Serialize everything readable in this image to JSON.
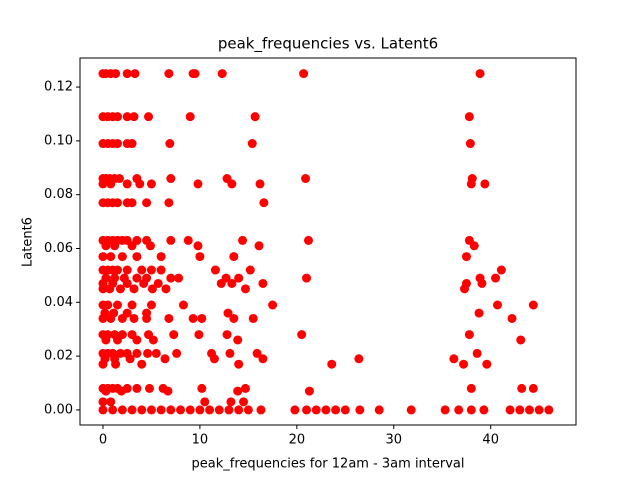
{
  "chart_data": {
    "type": "scatter",
    "title": "peak_frequencies vs. Latent6",
    "xlabel": "peak_frequencies for 12am - 3am interval",
    "ylabel": "Latent6",
    "xlim": [
      -2.37,
      48.8
    ],
    "ylim": [
      -0.0056,
      0.1308
    ],
    "xticks": [
      0,
      10,
      20,
      30,
      40
    ],
    "yticks": [
      {
        "value": 0,
        "label": "0.00"
      },
      0.02,
      0.04,
      0.06,
      0.08,
      {
        "value": 0.1,
        "label": "0.10"
      },
      0.12
    ],
    "series": [
      {
        "color": "#ff0000",
        "x": [
          0,
          0.3,
          0.8,
          1.3,
          2.5,
          3.3,
          6.8,
          9.3,
          9.5,
          12.3,
          20.7,
          38.9,
          0,
          0.5,
          1,
          1.5,
          2.5,
          3.2,
          4.7,
          9,
          15.7,
          37.8,
          0,
          0.5,
          1,
          1.5,
          2.5,
          3,
          6.9,
          15.4,
          37.9,
          0,
          0.3,
          0.7,
          1.2,
          1.7,
          3.5,
          7,
          12.8,
          20.9,
          38.1,
          0,
          0.8,
          2.5,
          3.8,
          5,
          9.8,
          13.3,
          16.2,
          38,
          39.4,
          0,
          0.5,
          1,
          1.5,
          2.5,
          3,
          4.5,
          6.8,
          16.6,
          0,
          0.5,
          1,
          1.5,
          2,
          2.5,
          3.5,
          4.5,
          7,
          8.8,
          14.4,
          21.2,
          37.8,
          0.3,
          1.2,
          3,
          4.9,
          9.8,
          16.1,
          38.3,
          0,
          0.8,
          2,
          3.5,
          6,
          10,
          13.5,
          37.5,
          0,
          0.5,
          1,
          1.5,
          2.5,
          4,
          5,
          6,
          11.6,
          15.2,
          41.1,
          0.3,
          1.2,
          2.2,
          3.5,
          4.5,
          7,
          7.8,
          12.7,
          14,
          21,
          38.9,
          40.5,
          0,
          1,
          2.5,
          4.2,
          5.7,
          12.2,
          13.3,
          16.5,
          37.5,
          39.1,
          0,
          0.7,
          1.8,
          3.2,
          5.1,
          6.5,
          14.7,
          37.3,
          0,
          0.5,
          1.5,
          3,
          5,
          8.3,
          17.5,
          40.7,
          44.4,
          0.2,
          1.1,
          2.5,
          4.5,
          12.9,
          38.8,
          0,
          0.8,
          2,
          3.2,
          4.5,
          6.8,
          9.3,
          10.2,
          13.5,
          15.5,
          42.2,
          0,
          0.5,
          1.2,
          2,
          3,
          4.7,
          7.3,
          9.9,
          12.8,
          20.5,
          37.8,
          0.3,
          1.5,
          3.5,
          5.2,
          13.9,
          43.1,
          0,
          0.5,
          1,
          1.8,
          2.5,
          3.5,
          4.6,
          5.5,
          7.6,
          11.2,
          13.1,
          15.9,
          38.6,
          0.2,
          1.2,
          2.8,
          6.4,
          11.5,
          16.5,
          26.4,
          36.2,
          0,
          1.3,
          4,
          14,
          23.6,
          37.2,
          39.6,
          0,
          0.5,
          1,
          1.5,
          2.5,
          3.5,
          4.8,
          6.2,
          10.2,
          14.7,
          38,
          43.2,
          44.4,
          0.3,
          1.9,
          6.7,
          13.9,
          21.3,
          0,
          0.8,
          10.5,
          13.2,
          14.5,
          0,
          1,
          2,
          3,
          4,
          5,
          6,
          7,
          8,
          9,
          10,
          11,
          12,
          13,
          14,
          15,
          16.3,
          19.8,
          21,
          22,
          23,
          24,
          25,
          26.5,
          28.5,
          31.8,
          35.3,
          36.7,
          38,
          39.3,
          42,
          43,
          44,
          45,
          46
        ],
        "y": [
          0.125,
          0.125,
          0.125,
          0.125,
          0.125,
          0.125,
          0.125,
          0.125,
          0.125,
          0.125,
          0.125,
          0.125,
          0.109,
          0.109,
          0.109,
          0.109,
          0.109,
          0.109,
          0.109,
          0.109,
          0.109,
          0.109,
          0.099,
          0.099,
          0.099,
          0.099,
          0.099,
          0.099,
          0.099,
          0.099,
          0.099,
          0.086,
          0.086,
          0.086,
          0.086,
          0.086,
          0.086,
          0.086,
          0.086,
          0.086,
          0.086,
          0.084,
          0.084,
          0.084,
          0.084,
          0.084,
          0.084,
          0.084,
          0.084,
          0.084,
          0.084,
          0.077,
          0.077,
          0.077,
          0.077,
          0.077,
          0.077,
          0.077,
          0.077,
          0.077,
          0.063,
          0.063,
          0.063,
          0.063,
          0.063,
          0.063,
          0.063,
          0.063,
          0.063,
          0.063,
          0.063,
          0.063,
          0.063,
          0.061,
          0.061,
          0.061,
          0.061,
          0.061,
          0.061,
          0.061,
          0.057,
          0.057,
          0.057,
          0.057,
          0.057,
          0.057,
          0.057,
          0.057,
          0.052,
          0.052,
          0.052,
          0.052,
          0.052,
          0.052,
          0.052,
          0.052,
          0.052,
          0.052,
          0.052,
          0.049,
          0.049,
          0.049,
          0.049,
          0.049,
          0.049,
          0.049,
          0.049,
          0.049,
          0.049,
          0.049,
          0.049,
          0.047,
          0.047,
          0.047,
          0.047,
          0.047,
          0.047,
          0.047,
          0.047,
          0.047,
          0.047,
          0.045,
          0.045,
          0.045,
          0.045,
          0.045,
          0.045,
          0.045,
          0.045,
          0.039,
          0.039,
          0.039,
          0.039,
          0.039,
          0.039,
          0.039,
          0.039,
          0.039,
          0.036,
          0.036,
          0.036,
          0.036,
          0.036,
          0.036,
          0.034,
          0.034,
          0.034,
          0.034,
          0.034,
          0.034,
          0.034,
          0.034,
          0.034,
          0.034,
          0.034,
          0.028,
          0.028,
          0.028,
          0.028,
          0.028,
          0.028,
          0.028,
          0.028,
          0.028,
          0.028,
          0.028,
          0.026,
          0.026,
          0.026,
          0.026,
          0.026,
          0.026,
          0.021,
          0.021,
          0.021,
          0.021,
          0.021,
          0.021,
          0.021,
          0.021,
          0.021,
          0.021,
          0.021,
          0.021,
          0.021,
          0.019,
          0.019,
          0.019,
          0.019,
          0.019,
          0.019,
          0.019,
          0.019,
          0.017,
          0.017,
          0.017,
          0.017,
          0.017,
          0.017,
          0.017,
          0.008,
          0.008,
          0.008,
          0.008,
          0.008,
          0.008,
          0.008,
          0.008,
          0.008,
          0.008,
          0.008,
          0.008,
          0.008,
          0.007,
          0.007,
          0.007,
          0.007,
          0.007,
          0.003,
          0.003,
          0.003,
          0.003,
          0.003,
          0,
          0,
          0,
          0,
          0,
          0,
          0,
          0,
          0,
          0,
          0,
          0,
          0,
          0,
          0,
          0,
          0,
          0,
          0,
          0,
          0,
          0,
          0,
          0,
          0,
          0,
          0,
          0,
          0,
          0,
          0,
          0,
          0,
          0,
          0
        ]
      }
    ]
  }
}
